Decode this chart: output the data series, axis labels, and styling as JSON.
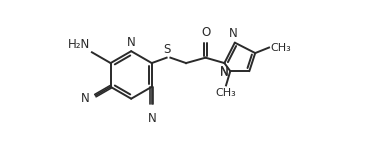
{
  "bg_color": "#ffffff",
  "line_color": "#2a2a2a",
  "line_width": 1.4,
  "font_size": 8.5,
  "fig_width": 3.92,
  "fig_height": 1.58,
  "dpi": 100,
  "xlim": [
    0,
    10.5
  ],
  "ylim": [
    0,
    5.8
  ]
}
